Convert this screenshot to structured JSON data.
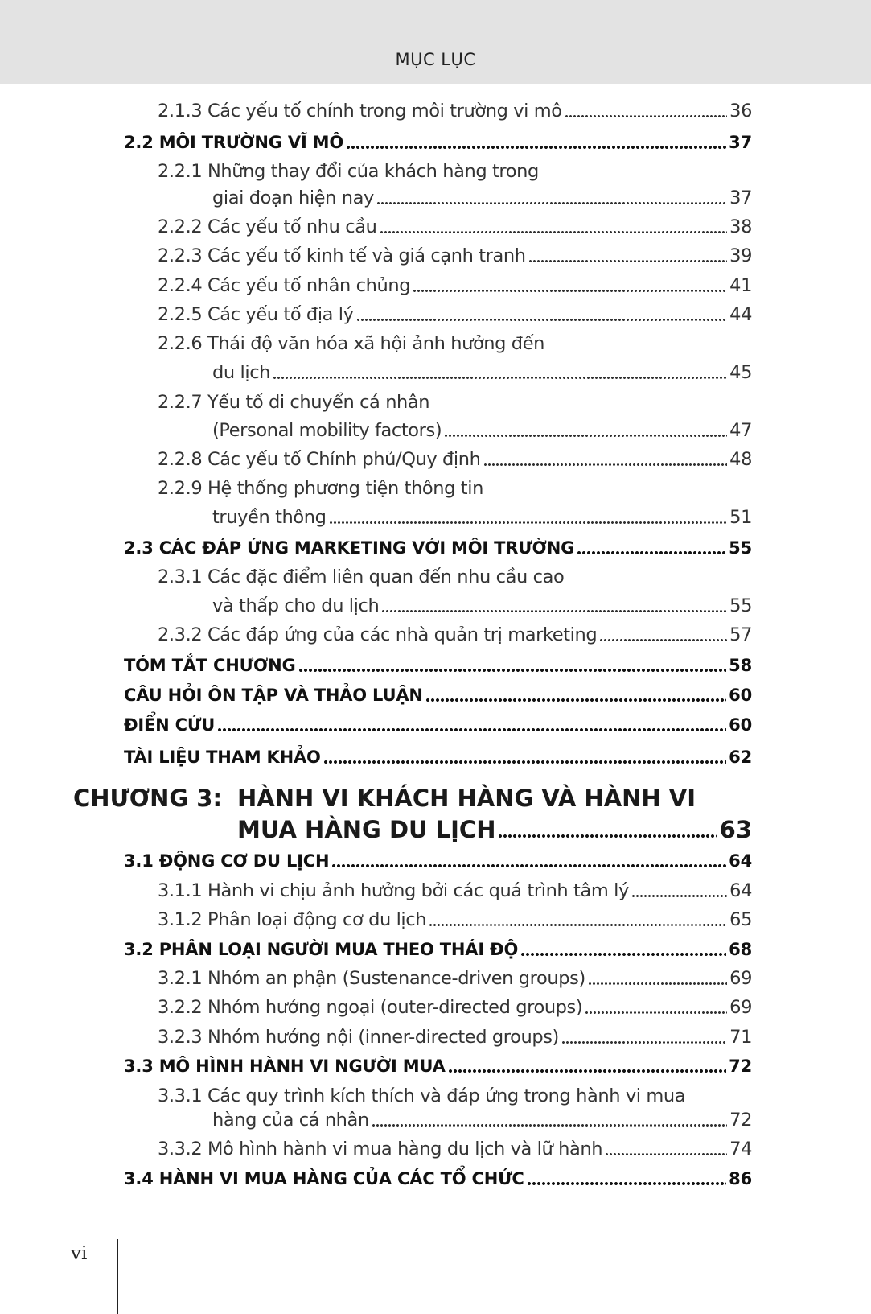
{
  "header": {
    "title": "MỤC LỤC"
  },
  "entries": [
    {
      "level": 2,
      "lines": [
        "2.1.3 Các yếu tố chính trong môi trường vi mô"
      ],
      "page": "36"
    },
    {
      "level": 1,
      "lines": [
        "2.2 MÔI TRƯỜNG VĨ MÔ"
      ],
      "page": "37"
    },
    {
      "level": 2,
      "lines": [
        "2.2.1  Những thay đổi của khách hàng trong",
        "giai đoạn hiện nay"
      ],
      "page": "37"
    },
    {
      "level": 2,
      "lines": [
        "2.2.2 Các yếu tố nhu cầu "
      ],
      "page": "38"
    },
    {
      "level": 2,
      "lines": [
        "2.2.3 Các yếu tố kinh tế và giá cạnh tranh"
      ],
      "page": "39"
    },
    {
      "level": 2,
      "lines": [
        "2.2.4 Các yếu tố nhân chủng "
      ],
      "page": "41"
    },
    {
      "level": 2,
      "lines": [
        "2.2.5 Các yếu tố địa lý"
      ],
      "page": "44"
    },
    {
      "level": 2,
      "lines": [
        "2.2.6 Thái độ văn hóa xã hội ảnh hưởng đến",
        "du lịch"
      ],
      "page": "45"
    },
    {
      "level": 2,
      "lines": [
        "2.2.7 Yếu tố di chuyển cá nhân",
        "(Personal mobility factors)"
      ],
      "page": "47"
    },
    {
      "level": 2,
      "lines": [
        "2.2.8 Các yếu tố Chính phủ/Quy định "
      ],
      "page": "48"
    },
    {
      "level": 2,
      "lines": [
        "2.2.9 Hệ thống phương tiện thông tin",
        "truyền thông "
      ],
      "page": "51"
    },
    {
      "level": 1,
      "lines": [
        "2.3 CÁC ĐÁP ỨNG MARKETING VỚI MÔI TRƯỜNG"
      ],
      "page": "55"
    },
    {
      "level": 2,
      "lines": [
        "2.3.1 Các đặc điểm liên quan đến nhu cầu cao",
        "và thấp cho du lịch "
      ],
      "page": "55"
    },
    {
      "level": 2,
      "lines": [
        "2.3.2 Các đáp ứng của các nhà quản trị marketing"
      ],
      "page": "57"
    },
    {
      "level": 1,
      "lines": [
        "TÓM TẮT CHƯƠNG "
      ],
      "page": "58"
    },
    {
      "level": 1,
      "lines": [
        "CÂU HỎI ÔN TẬP VÀ THẢO LUẬN "
      ],
      "page": "60"
    },
    {
      "level": 1,
      "lines": [
        "ĐIỂN CỨU "
      ],
      "page": "60"
    },
    {
      "level": 1,
      "lines": [
        "TÀI LIỆU THAM KHẢO "
      ],
      "page": "62"
    },
    {
      "level": 0,
      "label": "CHƯƠNG 3:",
      "lines": [
        "HÀNH VI KHÁCH HÀNG VÀ HÀNH VI",
        "MUA HÀNG DU LỊCH"
      ],
      "page": "63"
    },
    {
      "level": 1,
      "lines": [
        "3.1 ĐỘNG CƠ DU LỊCH "
      ],
      "page": "64"
    },
    {
      "level": 2,
      "lines": [
        "3.1.1 Hành vi chịu ảnh hưởng bởi các quá trình tâm lý"
      ],
      "page": "64"
    },
    {
      "level": 2,
      "lines": [
        "3.1.2 Phân loại động cơ du lịch"
      ],
      "page": "65"
    },
    {
      "level": 1,
      "lines": [
        "3.2 PHÂN LOẠI NGƯỜI MUA THEO THÁI ĐỘ"
      ],
      "page": "68"
    },
    {
      "level": 2,
      "lines": [
        "3.2.1 Nhóm an phận (Sustenance-driven groups)"
      ],
      "page": "69"
    },
    {
      "level": 2,
      "lines": [
        "3.2.2 Nhóm hướng ngoại (outer-directed groups) "
      ],
      "page": "69"
    },
    {
      "level": 2,
      "lines": [
        "3.2.3 Nhóm hướng nội (inner-directed groups)"
      ],
      "page": "71"
    },
    {
      "level": 1,
      "lines": [
        "3.3 MÔ HÌNH HÀNH VI NGƯỜI MUA "
      ],
      "page": "72"
    },
    {
      "level": 2,
      "lines": [
        "3.3.1 Các quy trình kích thích và đáp ứng trong hành vi mua",
        "hàng của cá nhân "
      ],
      "page": "72"
    },
    {
      "level": 2,
      "lines": [
        "3.3.2 Mô hình hành vi mua hàng du lịch và lữ hành "
      ],
      "page": "74"
    },
    {
      "level": 1,
      "lines": [
        "3.4 HÀNH VI MUA HÀNG CỦA CÁC TỔ CHỨC"
      ],
      "page": "86"
    }
  ],
  "footer": {
    "folio": "vi"
  }
}
